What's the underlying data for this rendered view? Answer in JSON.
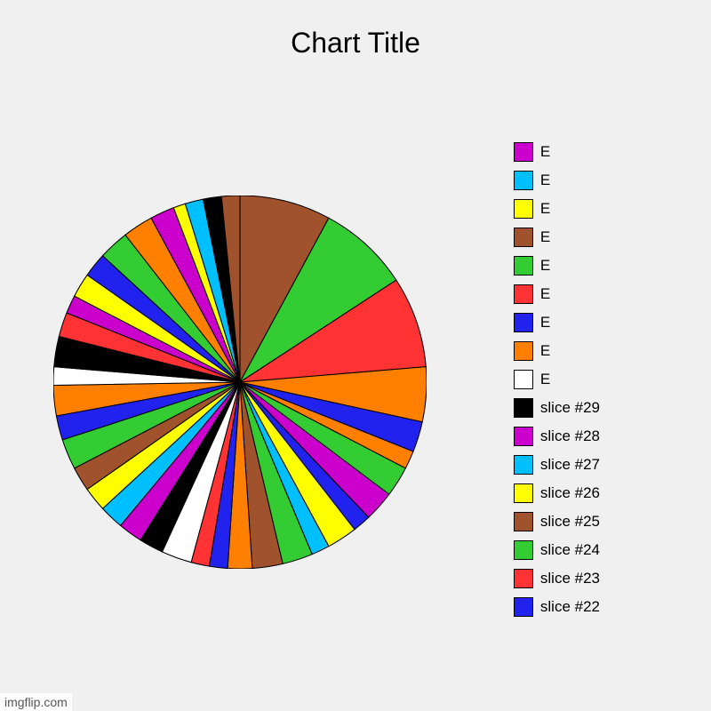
{
  "chart": {
    "type": "pie",
    "title": "Chart Title",
    "title_fontsize": 32,
    "background_color": "#f0f0f0",
    "pie_start_angle_deg": -90,
    "stroke_color": "#000000",
    "stroke_width": 0.5,
    "slices": [
      {
        "value": 7.5,
        "color": "#a0522d"
      },
      {
        "value": 7.5,
        "color": "#33cc33"
      },
      {
        "value": 7.5,
        "color": "#ff3333"
      },
      {
        "value": 4.5,
        "color": "#ff7f00"
      },
      {
        "value": 2.5,
        "color": "#2222ee"
      },
      {
        "value": 1.5,
        "color": "#ff7f00"
      },
      {
        "value": 2.5,
        "color": "#33cc33"
      },
      {
        "value": 2.5,
        "color": "#cc00cc"
      },
      {
        "value": 1.5,
        "color": "#2222ee"
      },
      {
        "value": 2.5,
        "color": "#ffff00"
      },
      {
        "value": 1.5,
        "color": "#00bfff"
      },
      {
        "value": 2.5,
        "color": "#33cc33"
      },
      {
        "value": 2.5,
        "color": "#a0522d"
      },
      {
        "value": 2.0,
        "color": "#ff7f00"
      },
      {
        "value": 1.5,
        "color": "#2222ee"
      },
      {
        "value": 1.5,
        "color": "#ff3333"
      },
      {
        "value": 2.5,
        "color": "#ffffff"
      },
      {
        "value": 2.0,
        "color": "#000000"
      },
      {
        "value": 2.0,
        "color": "#cc00cc"
      },
      {
        "value": 2.0,
        "color": "#00bfff"
      },
      {
        "value": 2.0,
        "color": "#ffff00"
      },
      {
        "value": 2.0,
        "color": "#a0522d"
      },
      {
        "value": 2.5,
        "color": "#33cc33"
      },
      {
        "value": 2.0,
        "color": "#2222ee"
      },
      {
        "value": 2.5,
        "color": "#ff7f00"
      },
      {
        "value": 1.5,
        "color": "#ffffff"
      },
      {
        "value": 2.5,
        "color": "#000000"
      },
      {
        "value": 2.0,
        "color": "#ff3333"
      },
      {
        "value": 1.5,
        "color": "#cc00cc"
      },
      {
        "value": 2.0,
        "color": "#ffff00"
      },
      {
        "value": 2.0,
        "color": "#2222ee"
      },
      {
        "value": 2.5,
        "color": "#33cc33"
      },
      {
        "value": 2.5,
        "color": "#ff7f00"
      },
      {
        "value": 2.0,
        "color": "#cc00cc"
      },
      {
        "value": 1.0,
        "color": "#ffff00"
      },
      {
        "value": 1.5,
        "color": "#00bfff"
      },
      {
        "value": 1.5,
        "color": "#000000"
      },
      {
        "value": 1.5,
        "color": "#a0522d"
      }
    ],
    "legend": {
      "items": [
        {
          "label": "E",
          "color": "#cc00cc"
        },
        {
          "label": "E",
          "color": "#00bfff"
        },
        {
          "label": "E",
          "color": "#ffff00"
        },
        {
          "label": "E",
          "color": "#a0522d"
        },
        {
          "label": "E",
          "color": "#33cc33"
        },
        {
          "label": "E",
          "color": "#ff3333"
        },
        {
          "label": "E",
          "color": "#2222ee"
        },
        {
          "label": "E",
          "color": "#ff7f00"
        },
        {
          "label": "E",
          "color": "#ffffff"
        },
        {
          "label": "slice #29",
          "color": "#000000"
        },
        {
          "label": "slice #28",
          "color": "#cc00cc"
        },
        {
          "label": "slice #27",
          "color": "#00bfff"
        },
        {
          "label": "slice #26",
          "color": "#ffff00"
        },
        {
          "label": "slice #25",
          "color": "#a0522d"
        },
        {
          "label": "slice #24",
          "color": "#33cc33"
        },
        {
          "label": "slice #23",
          "color": "#ff3333"
        },
        {
          "label": "slice #22",
          "color": "#2222ee"
        }
      ],
      "swatch_border_color": "#000000",
      "label_fontsize": 17
    },
    "watermark": "imgflip.com"
  }
}
